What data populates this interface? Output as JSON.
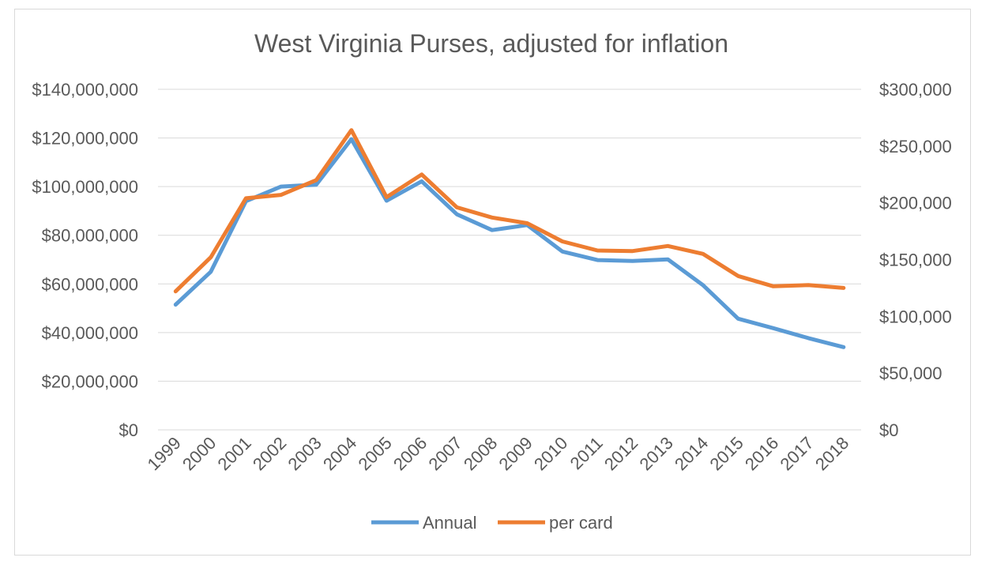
{
  "chart_data": {
    "type": "line",
    "title": "West Virginia Purses, adjusted for inflation",
    "categories": [
      "1999",
      "2000",
      "2001",
      "2002",
      "2003",
      "2004",
      "2005",
      "2006",
      "2007",
      "2008",
      "2009",
      "2010",
      "2011",
      "2012",
      "2013",
      "2014",
      "2015",
      "2016",
      "2017",
      "2018"
    ],
    "y_left": {
      "min": 0,
      "max": 140000000,
      "step": 20000000,
      "tick_labels": [
        "$0",
        "$20,000,000",
        "$40,000,000",
        "$60,000,000",
        "$80,000,000",
        "$100,000,000",
        "$120,000,000",
        "$140,000,000"
      ]
    },
    "y_right": {
      "min": 0,
      "max": 300000,
      "step": 50000,
      "tick_labels": [
        "$0",
        "$50,000",
        "$100,000",
        "$150,000",
        "$200,000",
        "$250,000",
        "$300,000"
      ]
    },
    "grid": true,
    "legend_position": "bottom",
    "series": [
      {
        "name": "Annual",
        "axis": "left",
        "color": "#5b9bd5",
        "values": [
          51500000,
          65000000,
          94000000,
          100000000,
          100800000,
          119500000,
          94200000,
          102200000,
          88600000,
          82100000,
          84200000,
          73300000,
          69800000,
          69400000,
          70100000,
          59500000,
          45700000,
          41800000,
          37700000,
          34000000
        ]
      },
      {
        "name": "per card",
        "axis": "right",
        "color": "#ed7d31",
        "values": [
          122000,
          152000,
          204000,
          207000,
          220000,
          264000,
          205000,
          225000,
          196000,
          187000,
          182000,
          166000,
          158000,
          157500,
          162000,
          155000,
          135500,
          126500,
          127500,
          125000
        ]
      }
    ]
  }
}
